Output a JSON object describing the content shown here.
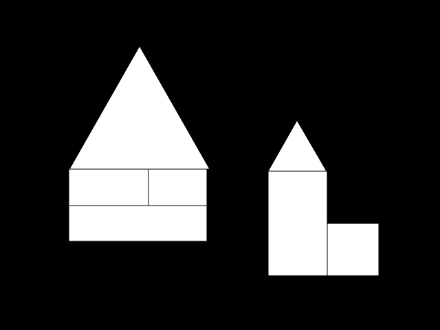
{
  "colors": {
    "background": "#000000",
    "fill": "#ffffff",
    "outline": "#000000"
  },
  "figures": [
    {
      "id": "left-house",
      "parts": [
        "triangle-roof",
        "rectangle",
        "rectangle",
        "rectangle"
      ]
    },
    {
      "id": "right-tower",
      "parts": [
        "triangle-roof",
        "rectangle",
        "square"
      ]
    }
  ]
}
